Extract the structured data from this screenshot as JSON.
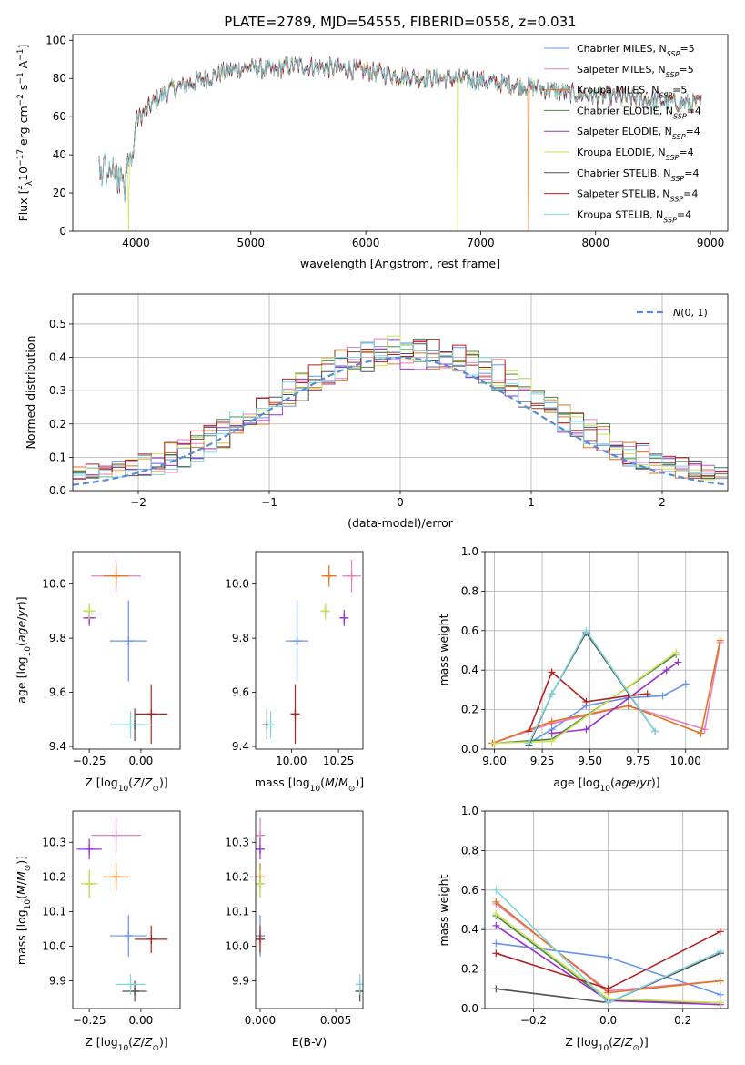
{
  "figure": {
    "title": "PLATE=2789, MJD=54555, FIBERID=0558, z=0.031"
  },
  "colors": {
    "Chabrier MILES": "#6495ed",
    "Salpeter MILES": "#e67fc0",
    "Kroupa MILES": "#e3731f",
    "Chabrier ELODIE": "#4b8a4b",
    "Salpeter ELODIE": "#9932cc",
    "Kroupa ELODIE": "#d4e157",
    "Chabrier STELIB": "#505050",
    "Salpeter STELIB": "#b22222",
    "Kroupa STELIB": "#7fd6dc",
    "normal": "#5b8bd6"
  },
  "chart_data": [
    {
      "id": "spectrum",
      "type": "line",
      "xlabel": "wavelength [Angstrom, rest frame]",
      "ylabel": "Flux [f_λ 10^-17 erg cm^-2 s^-1 A^-1]",
      "xlim": [
        3450,
        9150
      ],
      "ylim": [
        0,
        103
      ],
      "xticks": [
        4000,
        5000,
        6000,
        7000,
        8000,
        9000
      ],
      "yticks": [
        0,
        20,
        40,
        60,
        80,
        100
      ],
      "legend_position": "upper right",
      "legend": [
        "Chabrier MILES, N_SSP=5",
        "Salpeter MILES, N_SSP=5",
        "Kroupa MILES, N_SSP=5",
        "Chabrier ELODIE, N_SSP=4",
        "Salpeter ELODIE, N_SSP=4",
        "Kroupa ELODIE, N_SSP=4",
        "Chabrier STELIB, N_SSP=4",
        "Salpeter STELIB, N_SSP=4",
        "Kroupa STELIB, N_SSP=4"
      ],
      "continuum_x": [
        3680,
        3800,
        3900,
        3950,
        4000,
        4100,
        4200,
        4300,
        4400,
        4600,
        4800,
        5000,
        5100,
        5200,
        5300,
        5400,
        5600,
        5800,
        6000,
        6200,
        6400,
        6600,
        6800,
        7000,
        7200,
        7400,
        7600,
        7800,
        8000,
        8200,
        8400,
        8600,
        8800,
        8920
      ],
      "continuum_y": [
        42,
        38,
        30,
        45,
        58,
        64,
        70,
        74,
        76,
        80,
        84,
        86,
        85,
        84,
        86,
        87,
        86,
        85,
        84,
        82,
        81,
        80,
        80,
        79,
        77,
        76,
        74,
        72,
        71,
        70,
        69,
        68,
        67,
        67
      ],
      "dips": [
        {
          "x": 3934,
          "y": 0,
          "series": "Kroupa ELODIE"
        },
        {
          "x": 6800,
          "y": 0,
          "series": "Kroupa ELODIE"
        },
        {
          "x": 7418,
          "y": 0,
          "series": "Kroupa MILES"
        }
      ]
    },
    {
      "id": "residuals",
      "type": "histogram",
      "xlabel": "(data-model)/error",
      "ylabel": "Normed distribution",
      "xlim": [
        -2.5,
        2.5
      ],
      "ylim": [
        0,
        0.59
      ],
      "xticks": [
        -2,
        -1,
        0,
        1,
        2
      ],
      "yticks": [
        0.0,
        0.1,
        0.2,
        0.3,
        0.4,
        0.5
      ],
      "grid": true,
      "legend": [
        "N(0,1)"
      ],
      "legend_position": "upper right",
      "bin_width": 0.1,
      "reference_curve": "gaussian(0,1)"
    },
    {
      "id": "age-vs-Z",
      "type": "scatter",
      "xlabel": "Z [log10(Z/Z_sun)]",
      "ylabel": "age  [log10(age/yr)]",
      "xlim": [
        -0.33,
        0.19
      ],
      "ylim": [
        9.39,
        10.12
      ],
      "xticks": [
        -0.25,
        0.0
      ],
      "yticks": [
        9.4,
        9.6,
        9.8,
        10.0
      ],
      "xticklabels": [
        "−0.25",
        "0.00"
      ],
      "yticklabels": [
        "9.4",
        "9.6",
        "9.8",
        "10.0"
      ],
      "points": [
        {
          "series": "Chabrier MILES",
          "x": -0.06,
          "xerr": 0.09,
          "y": 9.79,
          "yerr": 0.15
        },
        {
          "series": "Salpeter MILES",
          "x": -0.12,
          "xerr": 0.12,
          "y": 10.03,
          "yerr": 0.06
        },
        {
          "series": "Kroupa MILES",
          "x": -0.12,
          "xerr": 0.06,
          "y": 10.03,
          "yerr": 0.04
        },
        {
          "series": "Chabrier ELODIE",
          "x": -0.25,
          "xerr": 0.03,
          "y": 9.9,
          "yerr": 0.03
        },
        {
          "series": "Salpeter ELODIE",
          "x": -0.25,
          "xerr": 0.03,
          "y": 9.875,
          "yerr": 0.03
        },
        {
          "series": "Kroupa ELODIE",
          "x": -0.25,
          "xerr": 0.03,
          "y": 9.9,
          "yerr": 0.03
        },
        {
          "series": "Chabrier STELIB",
          "x": -0.03,
          "xerr": 0.05,
          "y": 9.48,
          "yerr": 0.06
        },
        {
          "series": "Salpeter STELIB",
          "x": 0.05,
          "xerr": 0.08,
          "y": 9.52,
          "yerr": 0.11
        },
        {
          "series": "Kroupa STELIB",
          "x": -0.05,
          "xerr": 0.1,
          "y": 9.48,
          "yerr": 0.05
        }
      ]
    },
    {
      "id": "age-vs-mass",
      "type": "scatter",
      "xlabel": "mass [log10(M/M_sun)]",
      "xlim": [
        9.81,
        10.38
      ],
      "ylim": [
        9.39,
        10.12
      ],
      "xticks": [
        10.0,
        10.25
      ],
      "yticks": [
        9.4,
        9.6,
        9.8,
        10.0
      ],
      "xticklabels": [
        "10.00",
        "10.25"
      ],
      "yticklabels": [
        "9.4",
        "9.6",
        "9.8",
        "10.0"
      ],
      "points": [
        {
          "series": "Chabrier MILES",
          "x": 10.03,
          "xerr": 0.06,
          "y": 9.79,
          "yerr": 0.15
        },
        {
          "series": "Salpeter MILES",
          "x": 10.32,
          "xerr": 0.05,
          "y": 10.03,
          "yerr": 0.06
        },
        {
          "series": "Kroupa MILES",
          "x": 10.2,
          "xerr": 0.04,
          "y": 10.03,
          "yerr": 0.04
        },
        {
          "series": "Chabrier ELODIE",
          "x": 10.18,
          "xerr": 0.02,
          "y": 9.9,
          "yerr": 0.03
        },
        {
          "series": "Salpeter ELODIE",
          "x": 10.28,
          "xerr": 0.02,
          "y": 9.875,
          "yerr": 0.03
        },
        {
          "series": "Kroupa ELODIE",
          "x": 10.18,
          "xerr": 0.02,
          "y": 9.9,
          "yerr": 0.03
        },
        {
          "series": "Chabrier STELIB",
          "x": 9.87,
          "xerr": 0.02,
          "y": 9.48,
          "yerr": 0.06
        },
        {
          "series": "Salpeter STELIB",
          "x": 10.02,
          "xerr": 0.02,
          "y": 9.52,
          "yerr": 0.11
        },
        {
          "series": "Kroupa STELIB",
          "x": 9.89,
          "xerr": 0.02,
          "y": 9.48,
          "yerr": 0.05
        }
      ]
    },
    {
      "id": "weight-vs-age",
      "type": "line",
      "xlabel": "age  [log10(age/yr)]",
      "ylabel": "mass weight",
      "xlim": [
        8.95,
        10.22
      ],
      "ylim": [
        0,
        1.0
      ],
      "xticks": [
        9.0,
        9.25,
        9.5,
        9.75,
        10.0
      ],
      "yticks": [
        0.0,
        0.2,
        0.4,
        0.6,
        0.8,
        1.0
      ],
      "xticklabels": [
        "9.00",
        "9.25",
        "9.50",
        "9.75",
        "10.00"
      ],
      "yticklabels": [
        "0.0",
        "0.2",
        "0.4",
        "0.6",
        "0.8",
        "1.0"
      ],
      "grid": true,
      "series": [
        {
          "series": "Chabrier MILES",
          "x": [
            9.18,
            9.3,
            9.48,
            9.7,
            9.88,
            10.0
          ],
          "y": [
            0.03,
            0.1,
            0.22,
            0.26,
            0.27,
            0.33
          ]
        },
        {
          "series": "Salpeter MILES",
          "x": [
            8.99,
            9.3,
            9.7,
            10.1,
            10.18
          ],
          "y": [
            0.03,
            0.13,
            0.22,
            0.1,
            0.54
          ]
        },
        {
          "series": "Kroupa MILES",
          "x": [
            8.99,
            9.3,
            9.7,
            10.08,
            10.18
          ],
          "y": [
            0.03,
            0.14,
            0.22,
            0.08,
            0.55
          ]
        },
        {
          "series": "Chabrier ELODIE",
          "x": [
            9.0,
            9.3,
            9.95
          ],
          "y": [
            0.03,
            0.05,
            0.48
          ]
        },
        {
          "series": "Salpeter ELODIE",
          "x": [
            9.3,
            9.48,
            9.9,
            9.96
          ],
          "y": [
            0.08,
            0.1,
            0.4,
            0.44
          ]
        },
        {
          "series": "Kroupa ELODIE",
          "x": [
            9.0,
            9.3,
            9.95
          ],
          "y": [
            0.03,
            0.04,
            0.49
          ]
        },
        {
          "series": "Chabrier STELIB",
          "x": [
            9.18,
            9.3,
            9.48,
            9.84
          ],
          "y": [
            0.02,
            0.28,
            0.59,
            0.09
          ]
        },
        {
          "series": "Salpeter STELIB",
          "x": [
            9.18,
            9.3,
            9.48,
            9.7,
            9.8
          ],
          "y": [
            0.09,
            0.39,
            0.24,
            0.27,
            0.28
          ]
        },
        {
          "series": "Kroupa STELIB",
          "x": [
            9.18,
            9.3,
            9.48,
            9.84
          ],
          "y": [
            0.03,
            0.28,
            0.6,
            0.09
          ]
        }
      ]
    },
    {
      "id": "mass-vs-Z",
      "type": "scatter",
      "xlabel": "Z [log10(Z/Z_sun)]",
      "ylabel": "mass [log10(M/M_sun)]",
      "xlim": [
        -0.33,
        0.19
      ],
      "ylim": [
        9.82,
        10.39
      ],
      "xticks": [
        -0.25,
        0.0
      ],
      "yticks": [
        9.9,
        10.0,
        10.1,
        10.2,
        10.3
      ],
      "xticklabels": [
        "−0.25",
        "0.00"
      ],
      "yticklabels": [
        "9.9",
        "10.0",
        "10.1",
        "10.2",
        "10.3"
      ],
      "points": [
        {
          "series": "Chabrier MILES",
          "x": -0.06,
          "xerr": 0.09,
          "y": 10.03,
          "yerr": 0.06
        },
        {
          "series": "Salpeter MILES",
          "x": -0.12,
          "xerr": 0.12,
          "y": 10.32,
          "yerr": 0.05
        },
        {
          "series": "Kroupa MILES",
          "x": -0.12,
          "xerr": 0.06,
          "y": 10.2,
          "yerr": 0.04
        },
        {
          "series": "Chabrier ELODIE",
          "x": -0.25,
          "xerr": 0.04,
          "y": 10.18,
          "yerr": 0.04
        },
        {
          "series": "Salpeter ELODIE",
          "x": -0.25,
          "xerr": 0.06,
          "y": 10.28,
          "yerr": 0.03
        },
        {
          "series": "Kroupa ELODIE",
          "x": -0.25,
          "xerr": 0.04,
          "y": 10.18,
          "yerr": 0.04
        },
        {
          "series": "Chabrier STELIB",
          "x": -0.03,
          "xerr": 0.06,
          "y": 9.87,
          "yerr": 0.03
        },
        {
          "series": "Salpeter STELIB",
          "x": 0.05,
          "xerr": 0.08,
          "y": 10.02,
          "yerr": 0.04
        },
        {
          "series": "Kroupa STELIB",
          "x": -0.05,
          "xerr": 0.07,
          "y": 9.89,
          "yerr": 0.03
        }
      ]
    },
    {
      "id": "mass-vs-EBV",
      "type": "scatter",
      "xlabel": "E(B-V)",
      "xlim": [
        -0.0003,
        0.0068
      ],
      "ylim": [
        9.82,
        10.39
      ],
      "xticks": [
        0.0,
        0.005
      ],
      "yticks": [
        9.9,
        10.0,
        10.1,
        10.2,
        10.3
      ],
      "xticklabels": [
        "0.000",
        "0.005"
      ],
      "yticklabels": [
        "9.9",
        "10.0",
        "10.1",
        "10.2",
        "10.3"
      ],
      "points": [
        {
          "series": "Chabrier MILES",
          "x": 0.0,
          "xerr": 0.0,
          "y": 10.03,
          "yerr": 0.06
        },
        {
          "series": "Salpeter MILES",
          "x": 0.0,
          "xerr": 0.0,
          "y": 10.32,
          "yerr": 0.05
        },
        {
          "series": "Kroupa MILES",
          "x": 0.0,
          "xerr": 0.0,
          "y": 10.2,
          "yerr": 0.04
        },
        {
          "series": "Chabrier ELODIE",
          "x": 0.0,
          "xerr": 0.0,
          "y": 10.18,
          "yerr": 0.04
        },
        {
          "series": "Salpeter ELODIE",
          "x": 0.0,
          "xerr": 0.0,
          "y": 10.28,
          "yerr": 0.03
        },
        {
          "series": "Kroupa ELODIE",
          "x": 0.0,
          "xerr": 0.0,
          "y": 10.18,
          "yerr": 0.04
        },
        {
          "series": "Chabrier STELIB",
          "x": 0.0066,
          "xerr": 0.0,
          "y": 9.87,
          "yerr": 0.03
        },
        {
          "series": "Salpeter STELIB",
          "x": 0.0,
          "xerr": 0.0,
          "y": 10.02,
          "yerr": 0.04
        },
        {
          "series": "Kroupa STELIB",
          "x": 0.0066,
          "xerr": 0.0,
          "y": 9.89,
          "yerr": 0.03
        }
      ]
    },
    {
      "id": "weight-vs-Z",
      "type": "line",
      "xlabel": "Z [log10(Z/Z_sun)]",
      "ylabel": "mass weight",
      "xlim": [
        -0.33,
        0.32
      ],
      "ylim": [
        0,
        1.0
      ],
      "xticks": [
        -0.2,
        0.0,
        0.2
      ],
      "yticks": [
        0.0,
        0.2,
        0.4,
        0.6,
        0.8,
        1.0
      ],
      "xticklabels": [
        "−0.2",
        "0.0",
        "0.2"
      ],
      "yticklabels": [
        "0.0",
        "0.2",
        "0.4",
        "0.6",
        "0.8",
        "1.0"
      ],
      "grid": true,
      "series": [
        {
          "series": "Chabrier MILES",
          "x": [
            -0.3,
            0.0,
            0.3
          ],
          "y": [
            0.33,
            0.26,
            0.07
          ]
        },
        {
          "series": "Salpeter MILES",
          "x": [
            -0.3,
            0.0,
            0.3
          ],
          "y": [
            0.53,
            0.09,
            0.14
          ]
        },
        {
          "series": "Kroupa MILES",
          "x": [
            -0.3,
            0.0,
            0.3
          ],
          "y": [
            0.54,
            0.08,
            0.14
          ]
        },
        {
          "series": "Chabrier ELODIE",
          "x": [
            -0.3,
            0.0,
            0.3
          ],
          "y": [
            0.47,
            0.04,
            0.03
          ]
        },
        {
          "series": "Salpeter ELODIE",
          "x": [
            -0.3,
            0.0,
            0.3
          ],
          "y": [
            0.42,
            0.04,
            0.02
          ]
        },
        {
          "series": "Kroupa ELODIE",
          "x": [
            -0.3,
            0.0,
            0.3
          ],
          "y": [
            0.48,
            0.05,
            0.03
          ]
        },
        {
          "series": "Chabrier STELIB",
          "x": [
            -0.3,
            0.0,
            0.3
          ],
          "y": [
            0.1,
            0.03,
            0.28
          ]
        },
        {
          "series": "Salpeter STELIB",
          "x": [
            -0.3,
            0.0,
            0.3
          ],
          "y": [
            0.28,
            0.1,
            0.39
          ]
        },
        {
          "series": "Kroupa STELIB",
          "x": [
            -0.3,
            0.0,
            0.3
          ],
          "y": [
            0.6,
            0.03,
            0.29
          ]
        }
      ]
    }
  ]
}
